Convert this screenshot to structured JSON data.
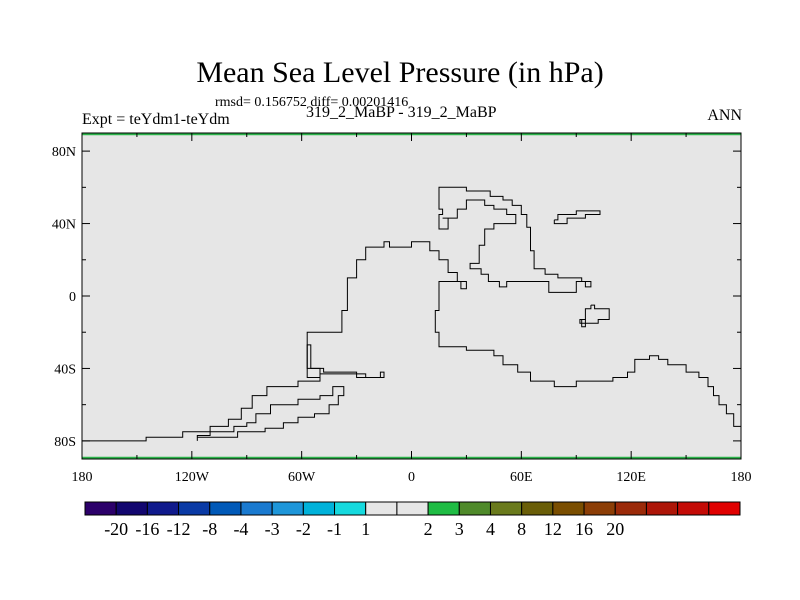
{
  "header": {
    "title": "Mean Sea Level Pressure (in hPa)",
    "stats": "rmsd= 0.156752 diff= 0.00201416",
    "left_label": "Expt = teYdm1-teYdm",
    "center_label": "319_2_MaBP - 319_2_MaBP",
    "right_label": "ANN"
  },
  "chart_data": {
    "type": "map",
    "title": "Mean Sea Level Pressure (in hPa)",
    "field_fill_color": "#e6e6e6",
    "field_value_class": "-1 to 1",
    "xlim": [
      -180,
      180
    ],
    "ylim": [
      -90,
      90
    ],
    "x_ticks": [
      {
        "value": -180,
        "label": "180"
      },
      {
        "value": -120,
        "label": "120W"
      },
      {
        "value": -60,
        "label": "60W"
      },
      {
        "value": 0,
        "label": "0"
      },
      {
        "value": 60,
        "label": "60E"
      },
      {
        "value": 120,
        "label": "120E"
      },
      {
        "value": 180,
        "label": "180"
      }
    ],
    "y_ticks": [
      {
        "value": 80,
        "label": "80N"
      },
      {
        "value": 40,
        "label": "40N"
      },
      {
        "value": 0,
        "label": "0"
      },
      {
        "value": -40,
        "label": "40S"
      },
      {
        "value": -80,
        "label": "80S"
      }
    ],
    "coastlines": [
      {
        "name": "coastline-west-supercontinent",
        "points": [
          [
            -180,
            -80
          ],
          [
            -145,
            -80
          ],
          [
            -145,
            -78
          ],
          [
            -125,
            -78
          ],
          [
            -125,
            -75
          ],
          [
            -110,
            -75
          ],
          [
            -110,
            -72
          ],
          [
            -100,
            -72
          ],
          [
            -100,
            -68
          ],
          [
            -93,
            -68
          ],
          [
            -93,
            -62
          ],
          [
            -87,
            -62
          ],
          [
            -87,
            -55
          ],
          [
            -79,
            -55
          ],
          [
            -79,
            -50
          ],
          [
            -62,
            -50
          ],
          [
            -62,
            -47
          ],
          [
            -50,
            -47
          ],
          [
            -50,
            -40
          ],
          [
            -57,
            -40
          ],
          [
            -57,
            -20
          ],
          [
            -38,
            -20
          ],
          [
            -38,
            -8
          ],
          [
            -35,
            -8
          ],
          [
            -35,
            10
          ],
          [
            -30,
            10
          ],
          [
            -30,
            20
          ],
          [
            -25,
            20
          ],
          [
            -25,
            27
          ],
          [
            -15,
            27
          ],
          [
            -15,
            30
          ],
          [
            -12,
            30
          ],
          [
            -12,
            27
          ],
          [
            0,
            27
          ],
          [
            0,
            30
          ],
          [
            10,
            30
          ],
          [
            10,
            25
          ],
          [
            15,
            25
          ],
          [
            15,
            20
          ],
          [
            20,
            20
          ],
          [
            20,
            13
          ],
          [
            25,
            13
          ],
          [
            25,
            8
          ],
          [
            30,
            8
          ],
          [
            30,
            4
          ],
          [
            27,
            4
          ],
          [
            27,
            8
          ],
          [
            15,
            8
          ],
          [
            15,
            -8
          ],
          [
            13,
            -8
          ],
          [
            13,
            -20
          ],
          [
            15,
            -20
          ],
          [
            15,
            -28
          ],
          [
            30,
            -28
          ],
          [
            30,
            -30
          ],
          [
            45,
            -30
          ],
          [
            45,
            -33
          ],
          [
            50,
            -33
          ],
          [
            50,
            -38
          ],
          [
            58,
            -38
          ],
          [
            58,
            -42
          ],
          [
            65,
            -42
          ],
          [
            65,
            -47
          ],
          [
            78,
            -47
          ],
          [
            78,
            -50
          ],
          [
            90,
            -50
          ],
          [
            90,
            -47
          ],
          [
            110,
            -47
          ],
          [
            110,
            -45
          ],
          [
            118,
            -45
          ],
          [
            118,
            -42
          ],
          [
            122,
            -42
          ],
          [
            122,
            -35
          ],
          [
            130,
            -35
          ],
          [
            130,
            -33
          ],
          [
            135,
            -33
          ],
          [
            135,
            -35
          ],
          [
            140,
            -35
          ],
          [
            140,
            -38
          ],
          [
            150,
            -38
          ],
          [
            150,
            -42
          ],
          [
            157,
            -42
          ],
          [
            157,
            -45
          ],
          [
            162,
            -45
          ],
          [
            162,
            -50
          ],
          [
            165,
            -50
          ],
          [
            165,
            -55
          ],
          [
            168,
            -55
          ],
          [
            168,
            -60
          ],
          [
            172,
            -60
          ],
          [
            172,
            -65
          ],
          [
            176,
            -65
          ],
          [
            176,
            -72
          ],
          [
            180,
            -72
          ]
        ]
      },
      {
        "name": "coastline-north-continent",
        "points": [
          [
            17,
            43
          ],
          [
            20,
            43
          ],
          [
            20,
            37
          ],
          [
            15,
            37
          ],
          [
            15,
            45
          ],
          [
            17,
            45
          ],
          [
            17,
            48
          ],
          [
            15,
            48
          ],
          [
            15,
            60
          ],
          [
            30,
            60
          ],
          [
            30,
            58
          ],
          [
            43,
            58
          ],
          [
            43,
            55
          ],
          [
            50,
            55
          ],
          [
            50,
            53
          ],
          [
            55,
            53
          ],
          [
            55,
            50
          ],
          [
            60,
            50
          ],
          [
            60,
            45
          ],
          [
            63,
            45
          ],
          [
            63,
            38
          ],
          [
            65,
            38
          ],
          [
            65,
            25
          ],
          [
            67,
            25
          ],
          [
            67,
            15
          ],
          [
            73,
            15
          ],
          [
            73,
            12
          ],
          [
            80,
            12
          ],
          [
            80,
            10
          ],
          [
            93,
            10
          ],
          [
            93,
            8
          ],
          [
            98,
            8
          ],
          [
            98,
            5
          ],
          [
            95,
            5
          ],
          [
            95,
            8
          ],
          [
            90,
            8
          ],
          [
            90,
            2
          ],
          [
            75,
            2
          ],
          [
            75,
            8
          ],
          [
            52,
            8
          ],
          [
            52,
            5
          ],
          [
            48,
            5
          ],
          [
            48,
            8
          ],
          [
            42,
            8
          ],
          [
            42,
            12
          ],
          [
            38,
            12
          ],
          [
            38,
            15
          ],
          [
            32,
            15
          ],
          [
            32,
            18
          ],
          [
            37,
            18
          ],
          [
            37,
            28
          ],
          [
            40,
            28
          ],
          [
            40,
            37
          ],
          [
            45,
            37
          ],
          [
            45,
            40
          ],
          [
            57,
            40
          ],
          [
            57,
            45
          ],
          [
            52,
            45
          ],
          [
            52,
            48
          ],
          [
            45,
            48
          ],
          [
            45,
            50
          ],
          [
            40,
            50
          ],
          [
            40,
            53
          ],
          [
            30,
            53
          ],
          [
            30,
            48
          ],
          [
            25,
            48
          ],
          [
            25,
            43
          ],
          [
            17,
            43
          ]
        ]
      },
      {
        "name": "coastline-island-east",
        "points": [
          [
            78,
            42
          ],
          [
            80,
            42
          ],
          [
            80,
            45
          ],
          [
            90,
            45
          ],
          [
            90,
            47
          ],
          [
            103,
            47
          ],
          [
            103,
            45
          ],
          [
            95,
            45
          ],
          [
            95,
            43
          ],
          [
            85,
            43
          ],
          [
            85,
            40
          ],
          [
            78,
            40
          ],
          [
            78,
            42
          ]
        ]
      },
      {
        "name": "coastline-island-small",
        "points": [
          [
            98,
            -5
          ],
          [
            100,
            -5
          ],
          [
            100,
            -7
          ],
          [
            108,
            -7
          ],
          [
            108,
            -13
          ],
          [
            102,
            -13
          ],
          [
            102,
            -15
          ],
          [
            92,
            -15
          ],
          [
            92,
            -13
          ],
          [
            95,
            -13
          ],
          [
            95,
            -7
          ],
          [
            98,
            -7
          ],
          [
            98,
            -5
          ]
        ]
      },
      {
        "name": "coastline-island-dot",
        "points": [
          [
            93,
            -13
          ],
          [
            95,
            -13
          ],
          [
            95,
            -17
          ],
          [
            93,
            -17
          ],
          [
            93,
            -13
          ]
        ]
      },
      {
        "name": "coastline-elongated-island",
        "points": [
          [
            -117,
            -80
          ],
          [
            -117,
            -77
          ],
          [
            -110,
            -77
          ],
          [
            -110,
            -75
          ],
          [
            -97,
            -75
          ],
          [
            -97,
            -72
          ],
          [
            -90,
            -72
          ],
          [
            -90,
            -70
          ],
          [
            -85,
            -70
          ],
          [
            -85,
            -65
          ],
          [
            -77,
            -65
          ],
          [
            -77,
            -60
          ],
          [
            -62,
            -60
          ],
          [
            -62,
            -57
          ],
          [
            -50,
            -57
          ],
          [
            -50,
            -55
          ],
          [
            -43,
            -55
          ],
          [
            -43,
            -50
          ],
          [
            -37,
            -50
          ],
          [
            -37,
            -55
          ],
          [
            -40,
            -55
          ],
          [
            -40,
            -60
          ],
          [
            -45,
            -60
          ],
          [
            -45,
            -65
          ],
          [
            -53,
            -65
          ],
          [
            -53,
            -67
          ],
          [
            -62,
            -67
          ],
          [
            -62,
            -70
          ],
          [
            -70,
            -70
          ],
          [
            -70,
            -73
          ],
          [
            -80,
            -73
          ],
          [
            -80,
            -75
          ],
          [
            -95,
            -75
          ],
          [
            -95,
            -78
          ],
          [
            -117,
            -78
          ],
          [
            -117,
            -80
          ]
        ]
      },
      {
        "name": "coastline-narrow-peninsula",
        "points": [
          [
            -57,
            -42
          ],
          [
            -57,
            -27
          ],
          [
            -55,
            -27
          ],
          [
            -55,
            -40
          ],
          [
            -48,
            -40
          ],
          [
            -48,
            -42
          ],
          [
            -30,
            -42
          ],
          [
            -30,
            -45
          ],
          [
            -17,
            -45
          ],
          [
            -17,
            -42
          ],
          [
            -15,
            -42
          ],
          [
            -15,
            -45
          ],
          [
            -25,
            -45
          ],
          [
            -25,
            -43
          ],
          [
            -50,
            -43
          ],
          [
            -50,
            -45
          ],
          [
            -57,
            -45
          ],
          [
            -57,
            -42
          ]
        ]
      }
    ],
    "colorbar": {
      "colors": [
        "#2c006a",
        "#12066f",
        "#101a8c",
        "#0a3aa5",
        "#0059b8",
        "#1a7ad0",
        "#1e96d9",
        "#00b2da",
        "#16d9de",
        "#e6e6e6",
        "#e6e6e6",
        "#1fbc44",
        "#4f8a2a",
        "#6a7a1c",
        "#6a5e08",
        "#7a4e00",
        "#8c3e06",
        "#9b2a09",
        "#ad1608",
        "#c40b06",
        "#e00000"
      ],
      "labels": [
        "-20",
        "-16",
        "-12",
        "-8",
        "-4",
        "-3",
        "-2",
        "-1",
        "1",
        "2",
        "3",
        "4",
        "8",
        "12",
        "16",
        "20"
      ]
    }
  }
}
